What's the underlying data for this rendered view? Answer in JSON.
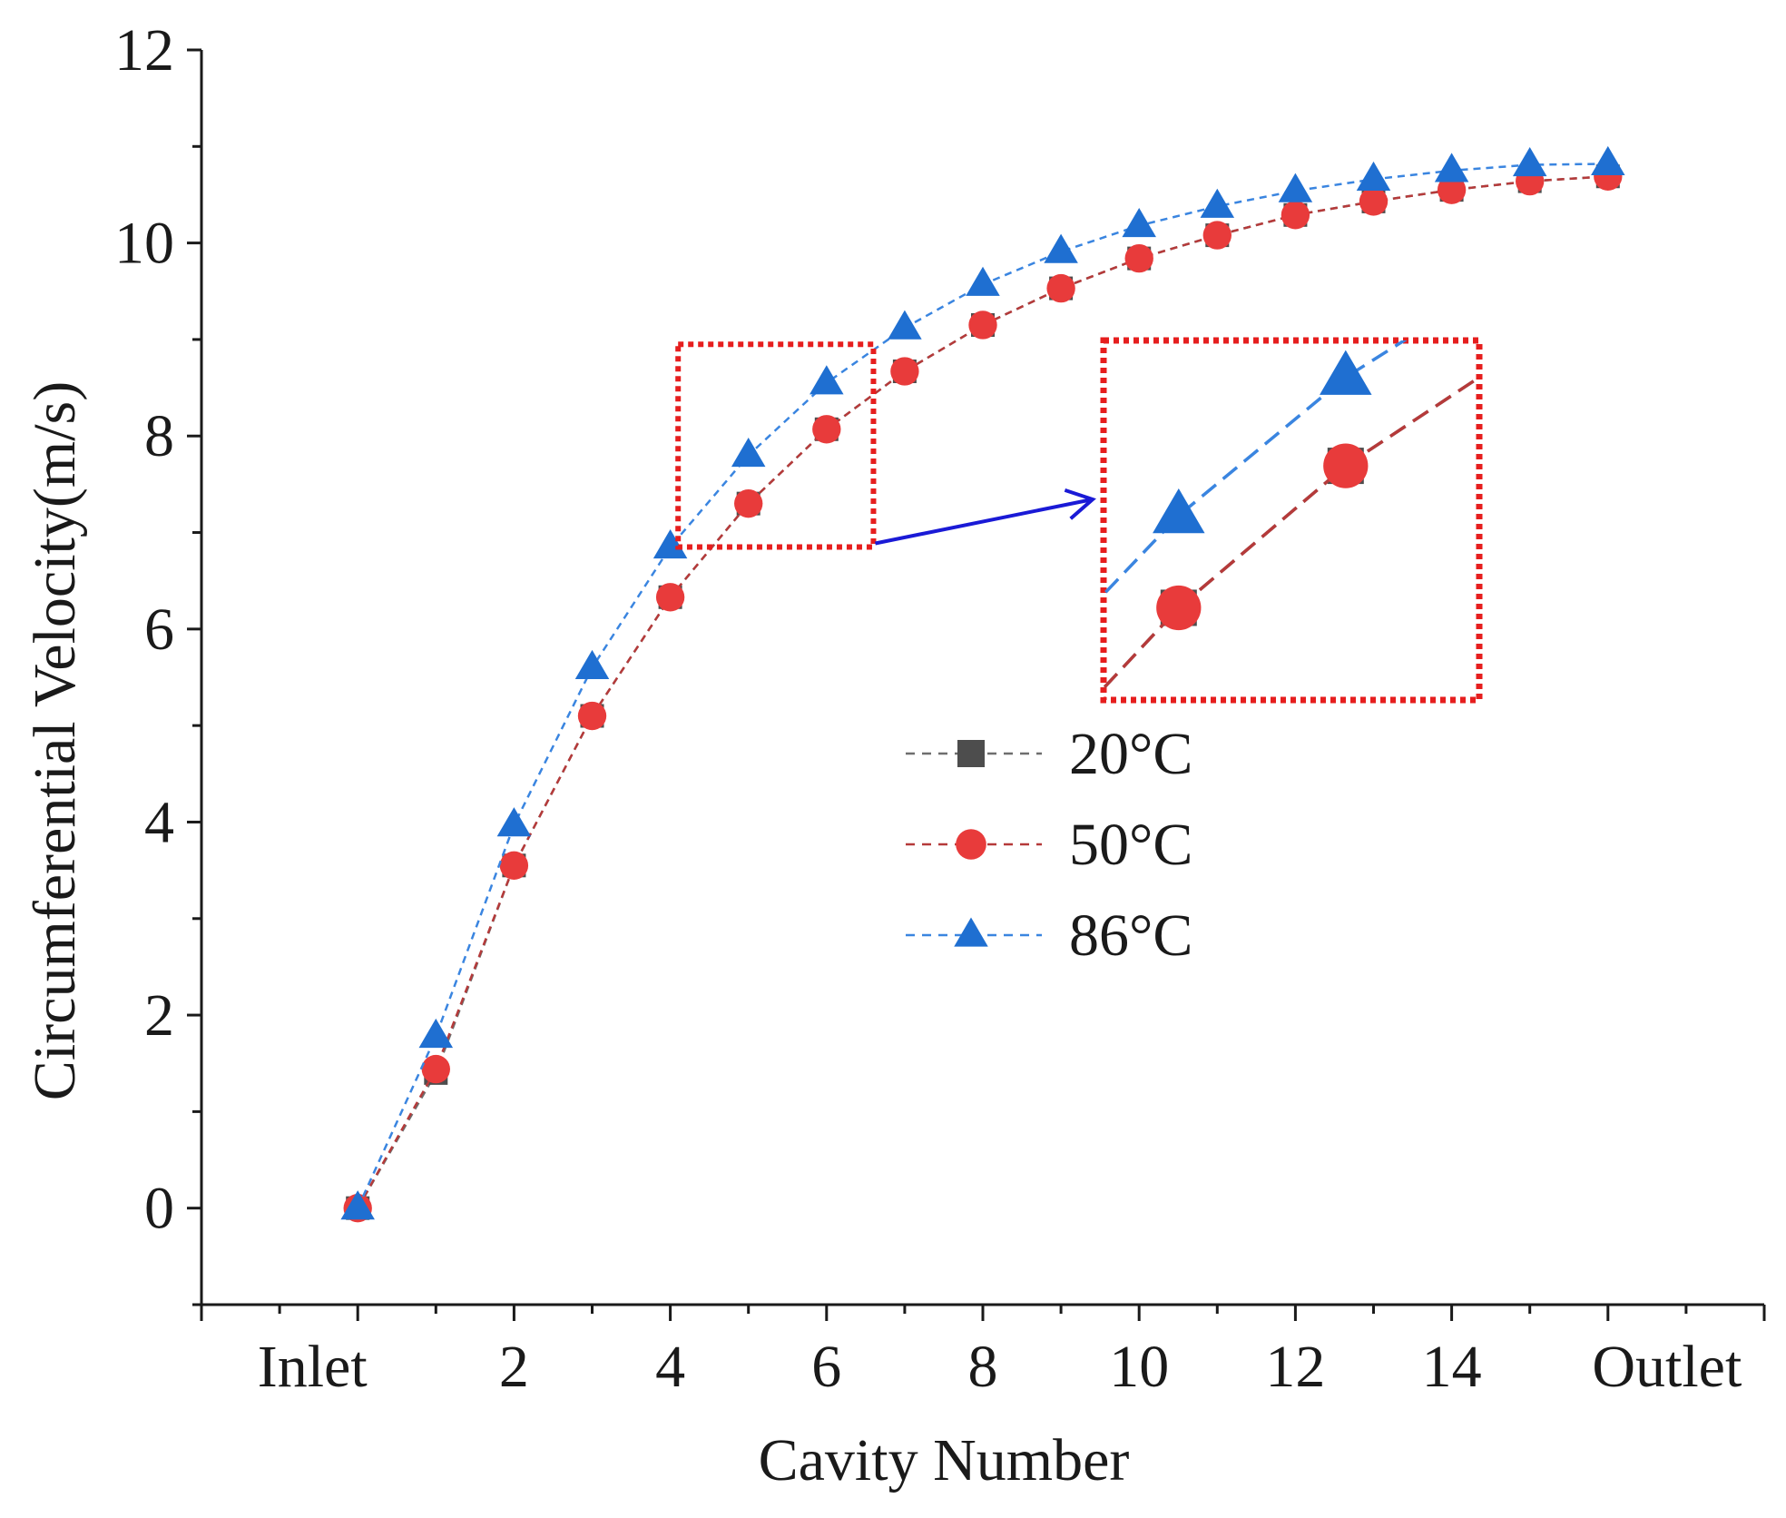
{
  "chart_data": {
    "type": "line",
    "xlabel": "Cavity Number",
    "ylabel": "Circumferential Velocity(m/s)",
    "xlim": [
      -2,
      18
    ],
    "ylim": [
      -1,
      12
    ],
    "x_ticks": [
      {
        "value": 0,
        "label": "Inlet"
      },
      {
        "value": 2,
        "label": "2"
      },
      {
        "value": 4,
        "label": "4"
      },
      {
        "value": 6,
        "label": "6"
      },
      {
        "value": 8,
        "label": "8"
      },
      {
        "value": 10,
        "label": "10"
      },
      {
        "value": 12,
        "label": "12"
      },
      {
        "value": 14,
        "label": "14"
      },
      {
        "value": 16,
        "label": "Outlet"
      }
    ],
    "y_ticks": [
      0,
      2,
      4,
      6,
      8,
      10,
      12
    ],
    "grid": false,
    "legend_position": "center-right",
    "x": [
      0,
      1,
      2,
      3,
      4,
      5,
      6,
      7,
      8,
      9,
      10,
      11,
      12,
      13,
      14,
      15,
      16
    ],
    "series": [
      {
        "name": "20°C",
        "marker": "square",
        "color": "#4d4d4d",
        "line_color": "#6e6e6e",
        "values": [
          0,
          1.4,
          3.55,
          5.1,
          6.33,
          7.3,
          8.07,
          8.67,
          9.15,
          9.53,
          9.84,
          10.08,
          10.29,
          10.43,
          10.55,
          10.64,
          10.69
        ]
      },
      {
        "name": "50°C",
        "marker": "circle",
        "color": "#e83b3b",
        "line_color": "#b53a3a",
        "values": [
          0,
          1.44,
          3.55,
          5.1,
          6.33,
          7.3,
          8.07,
          8.67,
          9.15,
          9.53,
          9.84,
          10.08,
          10.29,
          10.43,
          10.55,
          10.64,
          10.69
        ]
      },
      {
        "name": "86°C",
        "marker": "triangle",
        "color": "#1f6fd1",
        "line_color": "#3a85e0",
        "values": [
          0,
          1.78,
          3.97,
          5.6,
          6.85,
          7.8,
          8.55,
          9.12,
          9.57,
          9.91,
          10.18,
          10.38,
          10.54,
          10.66,
          10.75,
          10.81,
          10.82
        ]
      }
    ],
    "inset": {
      "zoom_x": [
        4.1,
        6.6
      ],
      "zoom_y": [
        6.85,
        8.95
      ],
      "box_color": "#e61e1e",
      "arrow_color": "#1a1ad6"
    }
  }
}
